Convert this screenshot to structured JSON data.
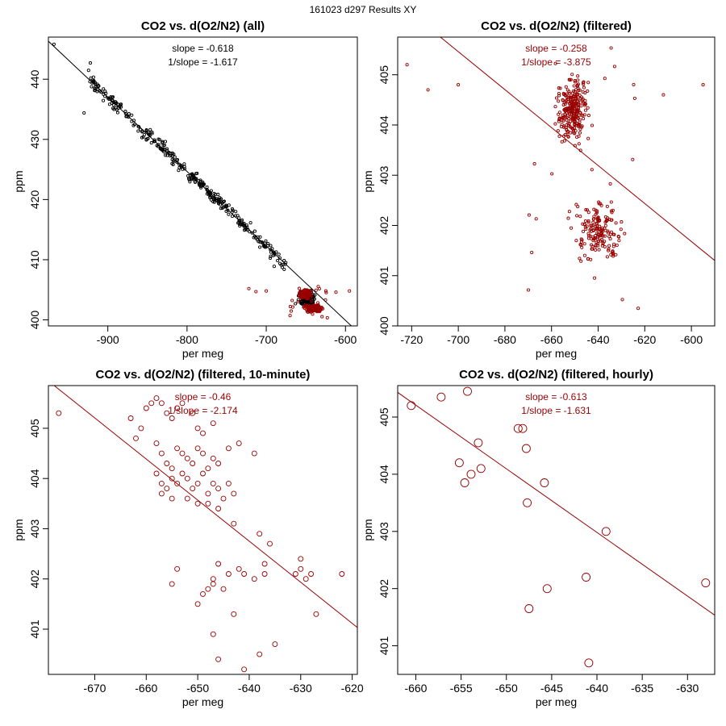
{
  "suptitle": "161023   d297   Results XY",
  "chart_data": [
    {
      "type": "scatter",
      "title": "CO2 vs. d(O2/N2) (all)",
      "xlabel": "per meg",
      "ylabel": "ppm",
      "xlim": [
        -975,
        -585
      ],
      "ylim": [
        399,
        447
      ],
      "xticks": [
        -900,
        -800,
        -700,
        -600
      ],
      "yticks": [
        400,
        410,
        420,
        430,
        440
      ],
      "annotations": [
        "slope = -0.618",
        "1/slope = -1.617"
      ],
      "annotation_color": "#000000",
      "fit": {
        "slope": -0.1237,
        "intercept": 325.7
      },
      "fit_color": "#000000",
      "series": [
        {
          "name": "all",
          "color": "#000000",
          "radius": 1.6,
          "generated": "all"
        },
        {
          "name": "filtered",
          "color": "#990000",
          "radius": 1.6,
          "generated": "filtered"
        }
      ]
    },
    {
      "type": "scatter",
      "title": "CO2 vs. d(O2/N2) (filtered)",
      "xlabel": "per meg",
      "ylabel": "ppm",
      "xlim": [
        -726,
        -590
      ],
      "ylim": [
        400.0,
        405.75
      ],
      "xticks": [
        -720,
        -700,
        -680,
        -660,
        -640,
        -620,
        -600
      ],
      "yticks": [
        400,
        401,
        402,
        403,
        404,
        405
      ],
      "annotations": [
        "slope = -0.258",
        "1/slope = -3.875"
      ],
      "annotation_color": "#990000",
      "fit": {
        "slope": -0.0378,
        "intercept": 379.0
      },
      "fit_color": "#990000",
      "series": [
        {
          "name": "filtered",
          "color": "#990000",
          "radius": 1.6,
          "generated": "filtered"
        }
      ]
    },
    {
      "type": "scatter",
      "title": "CO2 vs. d(O2/N2) (filtered, 10-minute)",
      "xlabel": "per meg",
      "ylabel": "ppm",
      "xlim": [
        -679,
        -619
      ],
      "ylim": [
        400.1,
        405.85
      ],
      "xticks": [
        -670,
        -660,
        -650,
        -640,
        -630,
        -620
      ],
      "yticks": [
        401,
        402,
        403,
        404,
        405
      ],
      "annotations": [
        "slope = -0.46",
        "1/slope = -2.174"
      ],
      "annotation_color": "#990000",
      "fit": {
        "slope": -0.0818,
        "intercept": 350.4
      },
      "fit_color": "#990000",
      "series": [
        {
          "name": "10-minute",
          "color": "#990000",
          "radius": 3,
          "points": [
            [
              -677,
              405.3
            ],
            [
              -662,
              404.8
            ],
            [
              -661,
              405.0
            ],
            [
              -663,
              405.2
            ],
            [
              -660,
              405.4
            ],
            [
              -659,
              405.5
            ],
            [
              -658,
              405.6
            ],
            [
              -657,
              405.5
            ],
            [
              -656,
              405.3
            ],
            [
              -655,
              405.2
            ],
            [
              -654,
              405.4
            ],
            [
              -653,
              405.5
            ],
            [
              -651,
              405.3
            ],
            [
              -650,
              405.0
            ],
            [
              -649,
              404.9
            ],
            [
              -647,
              405.1
            ],
            [
              -658,
              404.7
            ],
            [
              -657,
              404.5
            ],
            [
              -656,
              404.3
            ],
            [
              -655,
              404.2
            ],
            [
              -654,
              404.6
            ],
            [
              -653,
              404.5
            ],
            [
              -652,
              404.4
            ],
            [
              -651,
              404.3
            ],
            [
              -650,
              404.6
            ],
            [
              -649,
              404.5
            ],
            [
              -648,
              404.2
            ],
            [
              -647,
              404.4
            ],
            [
              -646,
              404.3
            ],
            [
              -644,
              404.6
            ],
            [
              -642,
              404.7
            ],
            [
              -639,
              404.5
            ],
            [
              -658,
              404.1
            ],
            [
              -657,
              403.9
            ],
            [
              -656,
              403.8
            ],
            [
              -655,
              404.0
            ],
            [
              -654,
              403.9
            ],
            [
              -653,
              404.1
            ],
            [
              -652,
              404.0
            ],
            [
              -651,
              403.8
            ],
            [
              -650,
              403.9
            ],
            [
              -649,
              404.1
            ],
            [
              -648,
              403.7
            ],
            [
              -647,
              403.9
            ],
            [
              -646,
              403.8
            ],
            [
              -645,
              403.6
            ],
            [
              -644,
              403.9
            ],
            [
              -643,
              403.7
            ],
            [
              -657,
              403.7
            ],
            [
              -655,
              403.6
            ],
            [
              -652,
              403.6
            ],
            [
              -650,
              403.5
            ],
            [
              -648,
              403.5
            ],
            [
              -646,
              403.4
            ],
            [
              -643,
              403.1
            ],
            [
              -638,
              402.9
            ],
            [
              -636,
              402.7
            ],
            [
              -654,
              402.2
            ],
            [
              -647,
              402.0
            ],
            [
              -646,
              402.3
            ],
            [
              -644,
              402.1
            ],
            [
              -642,
              402.2
            ],
            [
              -641,
              402.1
            ],
            [
              -639,
              402.0
            ],
            [
              -637,
              402.1
            ],
            [
              -637,
              402.3
            ],
            [
              -630,
              402.4
            ],
            [
              -630,
              402.2
            ],
            [
              -631,
              402.1
            ],
            [
              -629,
              402.0
            ],
            [
              -628,
              402.1
            ],
            [
              -622,
              402.1
            ],
            [
              -655,
              401.9
            ],
            [
              -650,
              401.5
            ],
            [
              -649,
              401.7
            ],
            [
              -648,
              401.8
            ],
            [
              -647,
              401.9
            ],
            [
              -645,
              401.8
            ],
            [
              -643,
              401.3
            ],
            [
              -627,
              401.3
            ],
            [
              -647,
              400.9
            ],
            [
              -638,
              400.5
            ],
            [
              -635,
              400.7
            ],
            [
              -646,
              400.4
            ],
            [
              -641,
              400.2
            ]
          ]
        }
      ]
    },
    {
      "type": "scatter",
      "title": "CO2 vs. d(O2/N2) (filtered, hourly)",
      "xlabel": "per meg",
      "ylabel": "ppm",
      "xlim": [
        -662,
        -627
      ],
      "ylim": [
        400.5,
        405.55
      ],
      "xticks": [
        -660,
        -655,
        -650,
        -645,
        -640,
        -635,
        -630
      ],
      "yticks": [
        401,
        402,
        403,
        404,
        405
      ],
      "annotations": [
        "slope = -0.613",
        "1/slope = -1.631"
      ],
      "annotation_color": "#990000",
      "fit": {
        "slope": -0.1113,
        "intercept": 331.75
      },
      "fit_color": "#990000",
      "series": [
        {
          "name": "hourly",
          "color": "#990000",
          "radius": 5,
          "points": [
            [
              -660.5,
              405.2
            ],
            [
              -657.2,
              405.35
            ],
            [
              -654.3,
              405.45
            ],
            [
              -653.1,
              404.55
            ],
            [
              -652.8,
              404.1
            ],
            [
              -655.2,
              404.2
            ],
            [
              -654.6,
              403.85
            ],
            [
              -653.9,
              404.0
            ],
            [
              -648.7,
              404.8
            ],
            [
              -648.2,
              404.8
            ],
            [
              -647.8,
              404.45
            ],
            [
              -647.7,
              403.5
            ],
            [
              -645.8,
              403.85
            ],
            [
              -645.5,
              402.0
            ],
            [
              -647.5,
              401.65
            ],
            [
              -641.2,
              402.2
            ],
            [
              -639.0,
              403.0
            ],
            [
              -628.0,
              402.1
            ],
            [
              -640.9,
              400.7
            ]
          ]
        }
      ]
    }
  ]
}
